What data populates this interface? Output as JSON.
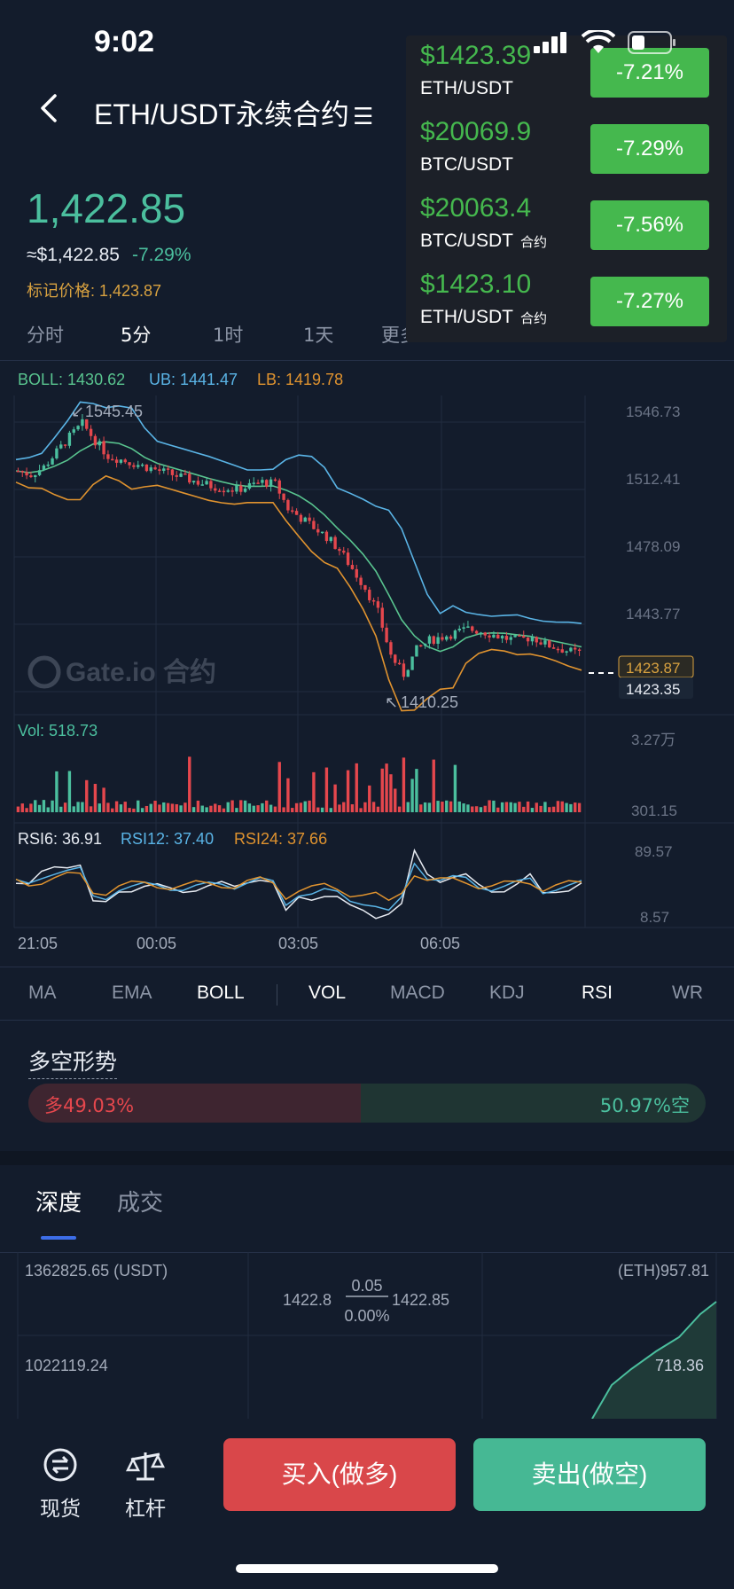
{
  "status": {
    "time": "9:02"
  },
  "header": {
    "pair_title": "ETH/USDT永续合约"
  },
  "ticker": {
    "last_price": "1,422.85",
    "usd_price": "≈$1,422.85",
    "change": "-7.29%",
    "mark_price": "标记价格: 1,423.87"
  },
  "timeframes": [
    "分时",
    "5分",
    "1时",
    "1天",
    "更多"
  ],
  "active_timeframe": "5分",
  "overlay": {
    "rows": [
      {
        "price": "$1423.39",
        "pair": "ETH/USDT",
        "tag": "",
        "change": "-7.21%"
      },
      {
        "price": "$20069.9",
        "pair": "BTC/USDT",
        "tag": "",
        "change": "-7.29%"
      },
      {
        "price": "$20063.4",
        "pair": "BTC/USDT",
        "tag": "合约",
        "change": "-7.56%"
      },
      {
        "price": "$1423.10",
        "pair": "ETH/USDT",
        "tag": "合约",
        "change": "-7.27%"
      }
    ],
    "color": "#45b84e"
  },
  "chart": {
    "boll_label": "BOLL: 1430.62",
    "ub_label": "UB: 1441.47",
    "lb_label": "LB: 1419.78",
    "high_marker": "1545.45",
    "low_marker": "1410.25",
    "price_ticks": [
      "1546.73",
      "1512.41",
      "1478.09",
      "1443.77"
    ],
    "mark_tag": "1423.87",
    "last_tag": "1423.35",
    "watermark": "Gate.io 合约",
    "vol_label": "Vol: 518.73",
    "vol_ticks": [
      "3.27万",
      "301.15"
    ],
    "rsi6_label": "RSI6: 36.91",
    "rsi12_label": "RSI12: 37.40",
    "rsi24_label": "RSI24: 37.66",
    "rsi_ticks": [
      "89.57",
      "8.57"
    ],
    "time_ticks": [
      "21:05",
      "00:05",
      "03:05",
      "06:05"
    ],
    "colors": {
      "up": "#4bbf9e",
      "down": "#e5474d",
      "boll": "#59c48f",
      "ub": "#5ab4e6",
      "lb": "#e0932f"
    }
  },
  "chart_data": {
    "type": "candlestick",
    "x_ticks": [
      "21:05",
      "00:05",
      "03:05",
      "06:05"
    ],
    "ylim": [
      1400,
      1560
    ],
    "y_ticks": [
      1546.73,
      1512.41,
      1478.09,
      1443.77
    ],
    "high": 1545.45,
    "low": 1410.25,
    "close_path": [
      1520,
      1518,
      1522,
      1530,
      1538,
      1545,
      1536,
      1528,
      1526,
      1524,
      1522,
      1520,
      1518,
      1516,
      1514,
      1512,
      1511,
      1510,
      1512,
      1514,
      1513,
      1500,
      1495,
      1490,
      1485,
      1478,
      1468,
      1458,
      1445,
      1422,
      1412,
      1425,
      1430,
      1432,
      1434,
      1436,
      1435,
      1433,
      1431,
      1430,
      1432,
      1428,
      1426,
      1424,
      1423
    ]
  },
  "indicators": [
    "MA",
    "EMA",
    "BOLL",
    "VOL",
    "MACD",
    "KDJ",
    "RSI",
    "WR"
  ],
  "active_indicators": [
    "BOLL",
    "VOL",
    "RSI"
  ],
  "long_short": {
    "title": "多空形势",
    "long_text": "多49.03%",
    "short_text": "50.97%空",
    "long_ratio": 0.4903
  },
  "depth": {
    "tabs": [
      "深度",
      "成交"
    ],
    "active": "深度",
    "left_top": "1362825.65 (USDT)",
    "right_top": "(ETH)957.81",
    "bid": "1422.8",
    "spread": "0.05",
    "ask": "1422.85",
    "spread_pct": "0.00%",
    "left_mid": "1022119.24",
    "right_mid": "718.36"
  },
  "bottom_nav": {
    "spot": "现货",
    "margin": "杠杆",
    "buy": "买入(做多)",
    "sell": "卖出(做空)"
  }
}
